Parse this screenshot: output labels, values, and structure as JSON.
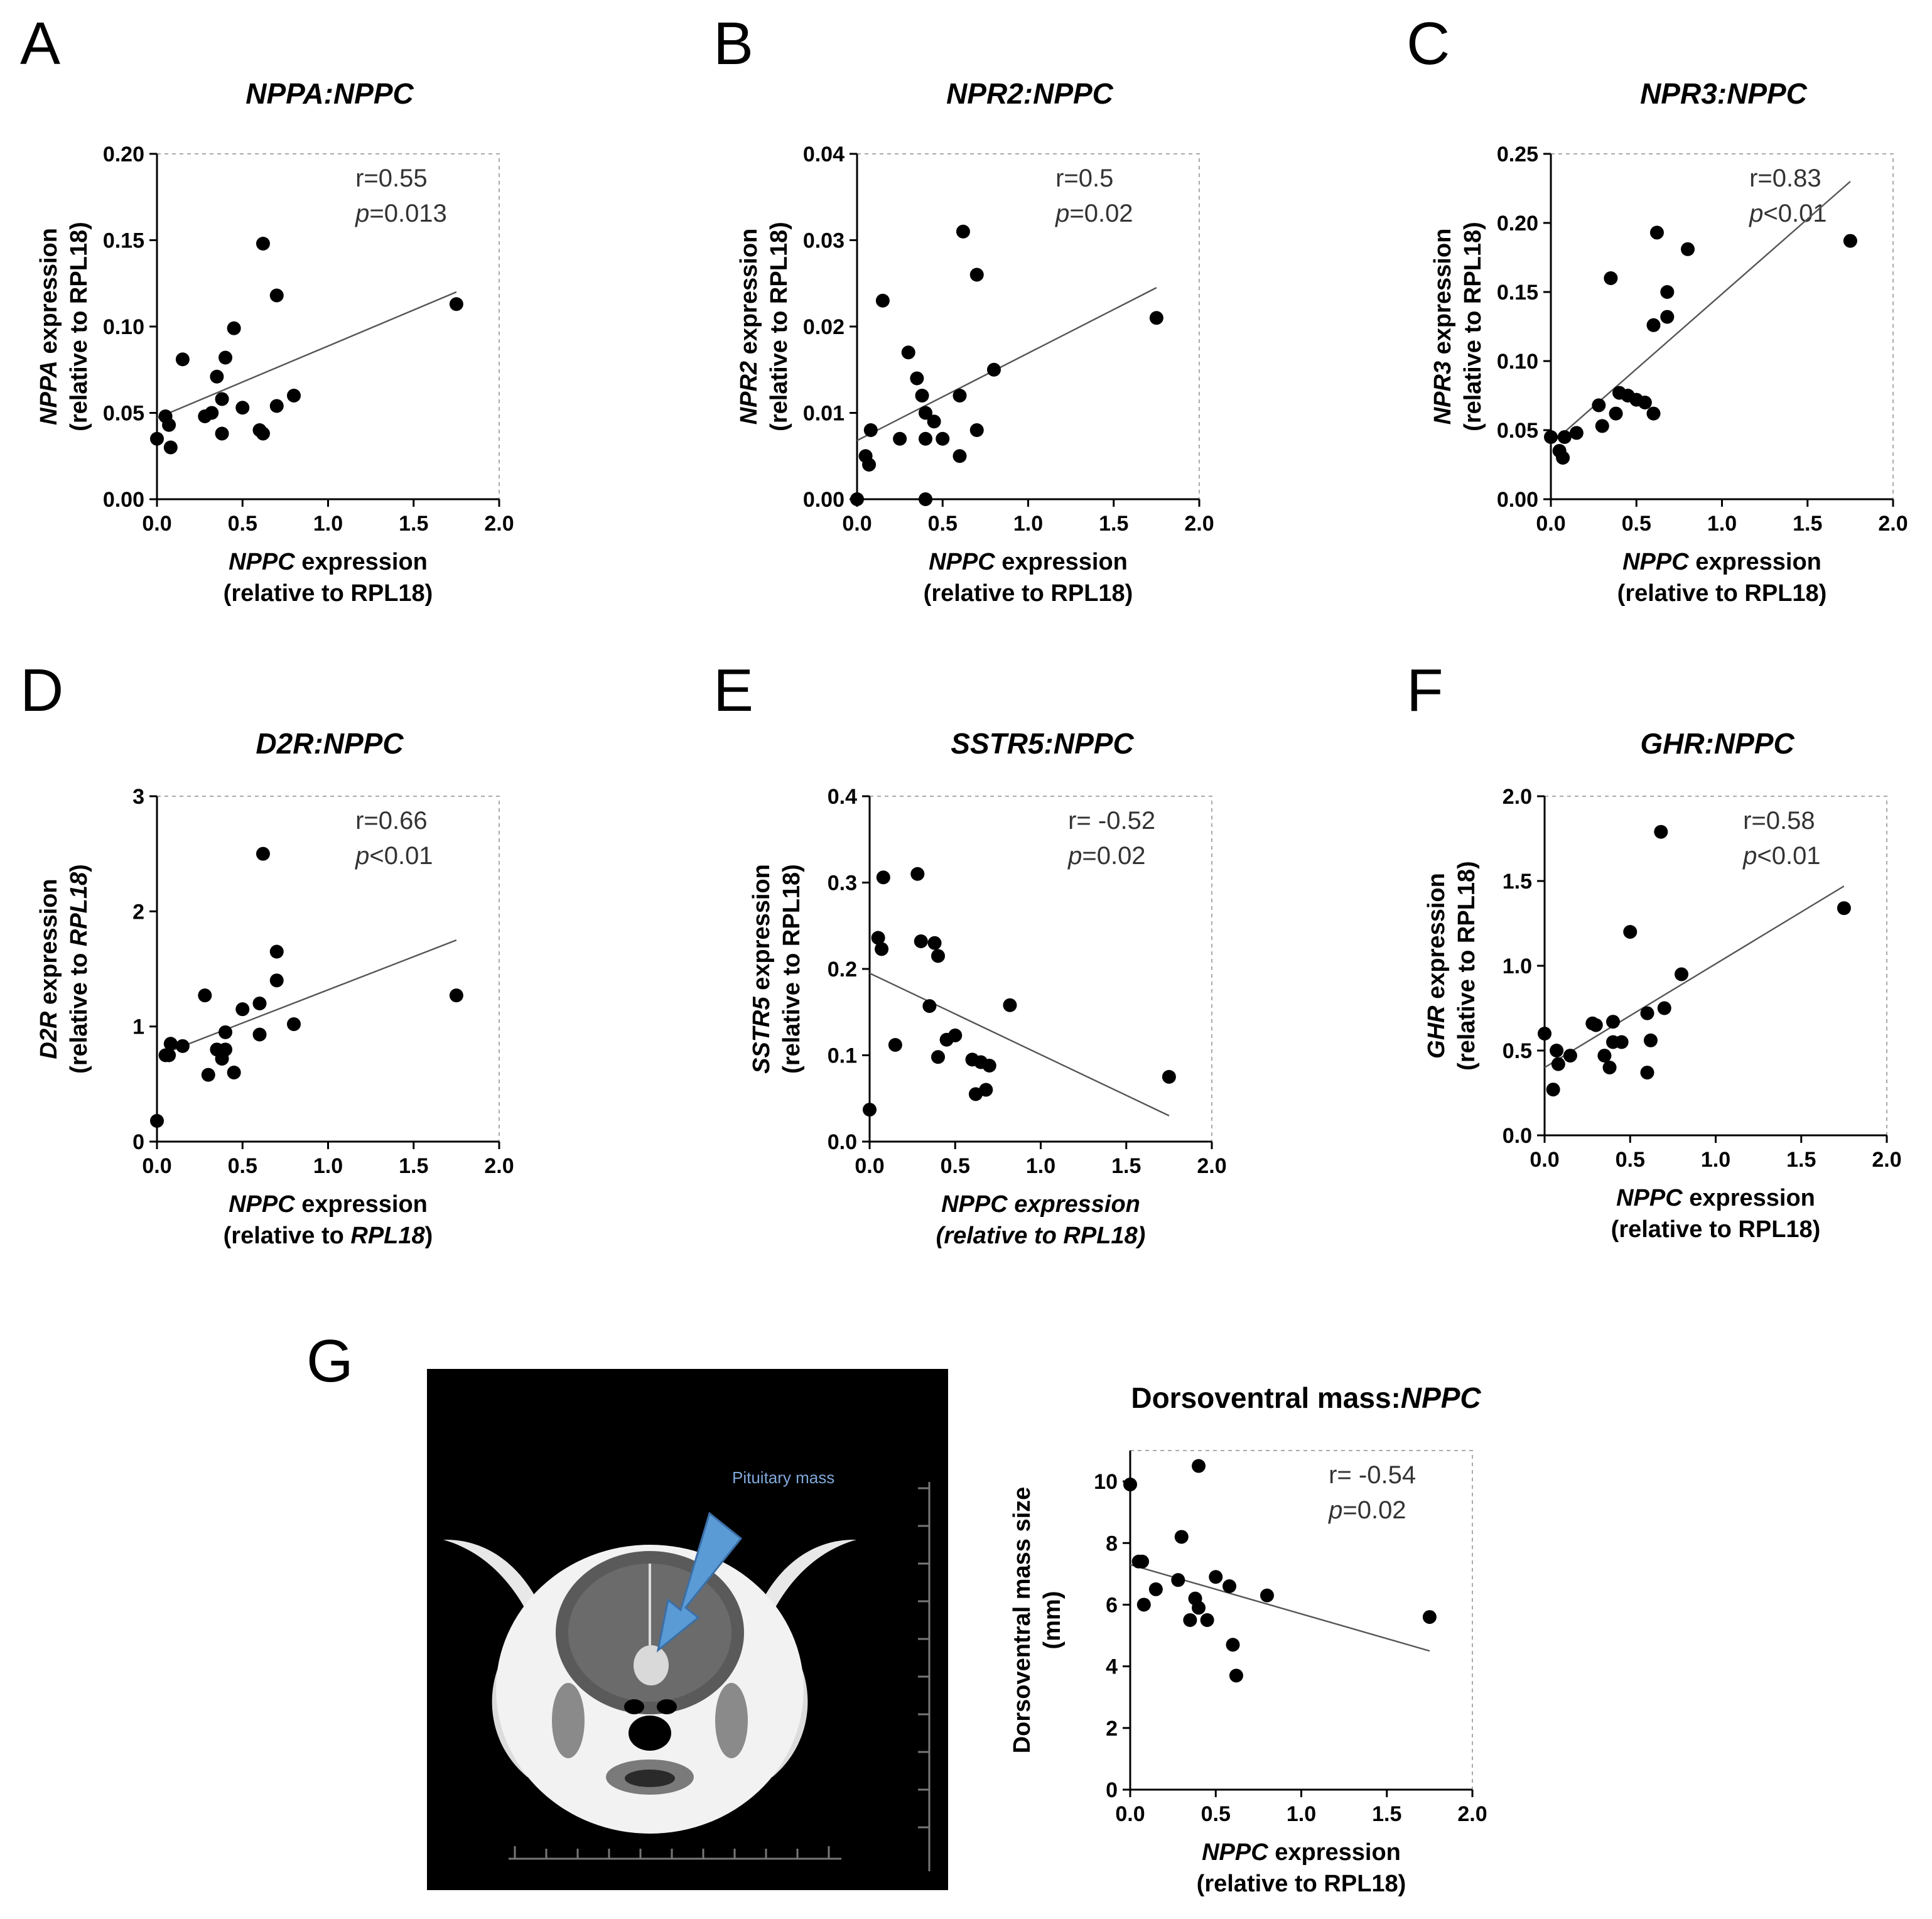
{
  "colors": {
    "points": "#000000",
    "fit_line": "#555555",
    "ct_background": "#000000",
    "arrow": "#5b9bd5"
  },
  "panel_labels": [
    "A",
    "B",
    "C",
    "D",
    "E",
    "F",
    "G"
  ],
  "ct_image": {
    "annotation": "Pituitary mass",
    "icon": "ct-scan-skull-image"
  },
  "chart_data": [
    {
      "id": "A",
      "type": "scatter",
      "title": "NPPA:NPPC",
      "xlabel_line1_italic": "NPPC",
      "xlabel_line1_rest": " expression",
      "xlabel_line2_pre": "(relative to ",
      "xlabel_line2_italic": "",
      "xlabel_line2_post": "RPL18)",
      "ylabel_line1_italic": "NPPA",
      "ylabel_line1_rest": " expression",
      "ylabel_line2_pre": "(relative to ",
      "ylabel_line2_italic": "",
      "ylabel_line2_post": "RPL18)",
      "xlim": [
        0,
        2
      ],
      "ylim": [
        0,
        0.2
      ],
      "xticks": [
        0,
        0.5,
        1,
        1.5,
        2
      ],
      "xtick_labels": [
        "0.0",
        "0.5",
        "1.0",
        "1.5",
        "2.0"
      ],
      "yticks": [
        0,
        0.05,
        0.1,
        0.15,
        0.2
      ],
      "ytick_labels": [
        "0.00",
        "0.05",
        "0.10",
        "0.15",
        "0.20"
      ],
      "stat_r": "r=0.55",
      "stat_p_letter": "p",
      "stat_p_rest": "=0.013",
      "fit": {
        "x": [
          0,
          1.75
        ],
        "y": [
          0.047,
          0.12
        ]
      },
      "points": [
        [
          0.0,
          0.035
        ],
        [
          0.05,
          0.048
        ],
        [
          0.07,
          0.043
        ],
        [
          0.08,
          0.03
        ],
        [
          0.15,
          0.081
        ],
        [
          0.28,
          0.048
        ],
        [
          0.32,
          0.05
        ],
        [
          0.35,
          0.071
        ],
        [
          0.38,
          0.038
        ],
        [
          0.38,
          0.058
        ],
        [
          0.4,
          0.082
        ],
        [
          0.45,
          0.099
        ],
        [
          0.5,
          0.053
        ],
        [
          0.6,
          0.04
        ],
        [
          0.62,
          0.038
        ],
        [
          0.62,
          0.148
        ],
        [
          0.7,
          0.118
        ],
        [
          0.7,
          0.054
        ],
        [
          0.8,
          0.06
        ],
        [
          1.75,
          0.113
        ]
      ]
    },
    {
      "id": "B",
      "type": "scatter",
      "title": "NPR2:NPPC",
      "xlabel_line1_italic": "NPPC",
      "xlabel_line1_rest": " expression",
      "xlabel_line2_pre": "(relative to ",
      "xlabel_line2_italic": "",
      "xlabel_line2_post": "RPL18)",
      "ylabel_line1_italic": "NPR2",
      "ylabel_line1_rest": " expression",
      "ylabel_line2_pre": "(relative to ",
      "ylabel_line2_italic": "",
      "ylabel_line2_post": "RPL18)",
      "xlim": [
        0,
        2
      ],
      "ylim": [
        0,
        0.04
      ],
      "xticks": [
        0,
        0.5,
        1,
        1.5,
        2
      ],
      "xtick_labels": [
        "0.0",
        "0.5",
        "1.0",
        "1.5",
        "2.0"
      ],
      "yticks": [
        0,
        0.01,
        0.02,
        0.03,
        0.04
      ],
      "ytick_labels": [
        "0.00",
        "0.01",
        "0.02",
        "0.03",
        "0.04"
      ],
      "stat_r": "r=0.5",
      "stat_p_letter": "p",
      "stat_p_rest": "=0.02",
      "fit": {
        "x": [
          0,
          1.75
        ],
        "y": [
          0.0068,
          0.0245
        ]
      },
      "points": [
        [
          0.0,
          0.0
        ],
        [
          0.05,
          0.005
        ],
        [
          0.07,
          0.004
        ],
        [
          0.08,
          0.008
        ],
        [
          0.15,
          0.023
        ],
        [
          0.25,
          0.007
        ],
        [
          0.3,
          0.017
        ],
        [
          0.35,
          0.014
        ],
        [
          0.38,
          0.012
        ],
        [
          0.4,
          0.01
        ],
        [
          0.4,
          0.007
        ],
        [
          0.4,
          0.0
        ],
        [
          0.45,
          0.009
        ],
        [
          0.5,
          0.007
        ],
        [
          0.6,
          0.012
        ],
        [
          0.6,
          0.005
        ],
        [
          0.62,
          0.031
        ],
        [
          0.7,
          0.026
        ],
        [
          0.7,
          0.008
        ],
        [
          0.8,
          0.015
        ],
        [
          1.75,
          0.021
        ]
      ]
    },
    {
      "id": "C",
      "type": "scatter",
      "title": "NPR3:NPPC",
      "xlabel_line1_italic": "NPPC",
      "xlabel_line1_rest": " expression",
      "xlabel_line2_pre": "(relative to ",
      "xlabel_line2_italic": "",
      "xlabel_line2_post": "RPL18)",
      "ylabel_line1_italic": "NPR3",
      "ylabel_line1_rest": " expression",
      "ylabel_line2_pre": "(relative to ",
      "ylabel_line2_italic": "",
      "ylabel_line2_post": "RPL18)",
      "xlim": [
        0,
        2
      ],
      "ylim": [
        0,
        0.25
      ],
      "xticks": [
        0,
        0.5,
        1,
        1.5,
        2
      ],
      "xtick_labels": [
        "0.0",
        "0.5",
        "1.0",
        "1.5",
        "2.0"
      ],
      "yticks": [
        0,
        0.05,
        0.1,
        0.15,
        0.2,
        0.25
      ],
      "ytick_labels": [
        "0.00",
        "0.05",
        "0.10",
        "0.15",
        "0.20",
        "0.25"
      ],
      "stat_r": "r=0.83",
      "stat_p_letter": "p",
      "stat_p_rest": "<0.01",
      "fit": {
        "x": [
          0,
          1.75
        ],
        "y": [
          0.04,
          0.23
        ]
      },
      "points": [
        [
          0.0,
          0.045
        ],
        [
          0.05,
          0.035
        ],
        [
          0.07,
          0.03
        ],
        [
          0.08,
          0.045
        ],
        [
          0.15,
          0.048
        ],
        [
          0.28,
          0.068
        ],
        [
          0.3,
          0.053
        ],
        [
          0.35,
          0.16
        ],
        [
          0.38,
          0.062
        ],
        [
          0.4,
          0.077
        ],
        [
          0.45,
          0.075
        ],
        [
          0.5,
          0.072
        ],
        [
          0.55,
          0.07
        ],
        [
          0.6,
          0.126
        ],
        [
          0.6,
          0.062
        ],
        [
          0.62,
          0.193
        ],
        [
          0.68,
          0.132
        ],
        [
          0.68,
          0.15
        ],
        [
          0.8,
          0.181
        ],
        [
          1.75,
          0.187
        ]
      ]
    },
    {
      "id": "D",
      "type": "scatter",
      "title": "D2R:NPPC",
      "xlabel_line1_italic": "NPPC",
      "xlabel_line1_rest": " expression",
      "xlabel_line2_pre": "(relative to ",
      "xlabel_line2_italic": "RPL18",
      "xlabel_line2_post": ")",
      "ylabel_line1_italic": "D2R",
      "ylabel_line1_rest": " expression",
      "ylabel_line2_pre": "(relative to ",
      "ylabel_line2_italic": "RPL18",
      "ylabel_line2_post": ")",
      "xlim": [
        0,
        2
      ],
      "ylim": [
        0,
        3
      ],
      "xticks": [
        0,
        0.5,
        1,
        1.5,
        2
      ],
      "xtick_labels": [
        "0.0",
        "0.5",
        "1.0",
        "1.5",
        "2.0"
      ],
      "yticks": [
        0,
        1,
        2,
        3
      ],
      "ytick_labels": [
        "0",
        "1",
        "2",
        "3"
      ],
      "stat_r": "r=0.66",
      "stat_p_letter": "p",
      "stat_p_rest": "<0.01",
      "fit": {
        "x": [
          0.1,
          1.75
        ],
        "y": [
          0.8,
          1.75
        ]
      },
      "points": [
        [
          0.0,
          0.18
        ],
        [
          0.05,
          0.75
        ],
        [
          0.07,
          0.75
        ],
        [
          0.08,
          0.85
        ],
        [
          0.15,
          0.83
        ],
        [
          0.28,
          1.27
        ],
        [
          0.3,
          0.58
        ],
        [
          0.35,
          0.8
        ],
        [
          0.38,
          0.72
        ],
        [
          0.4,
          0.95
        ],
        [
          0.4,
          0.8
        ],
        [
          0.45,
          0.6
        ],
        [
          0.5,
          1.15
        ],
        [
          0.6,
          1.2
        ],
        [
          0.6,
          0.93
        ],
        [
          0.62,
          2.5
        ],
        [
          0.7,
          1.65
        ],
        [
          0.7,
          1.4
        ],
        [
          0.8,
          1.02
        ],
        [
          1.75,
          1.27
        ]
      ]
    },
    {
      "id": "E",
      "type": "scatter",
      "title": "SSTR5:NPPC",
      "xlabel_line1_italic": "NPPC expression",
      "xlabel_line1_rest": "",
      "xlabel_line2_pre": "",
      "xlabel_line2_italic": "(relative to RPL18)",
      "xlabel_line2_post": "",
      "ylabel_line1_italic": "SSTR5",
      "ylabel_line1_rest": " expression",
      "ylabel_line2_pre": "(relative to ",
      "ylabel_line2_italic": "",
      "ylabel_line2_post": "RPL18)",
      "xlim": [
        0,
        2
      ],
      "ylim": [
        0,
        0.4
      ],
      "xticks": [
        0,
        0.5,
        1,
        1.5,
        2
      ],
      "xtick_labels": [
        "0.0",
        "0.5",
        "1.0",
        "1.5",
        "2.0"
      ],
      "yticks": [
        0,
        0.1,
        0.2,
        0.3,
        0.4
      ],
      "ytick_labels": [
        "0.0",
        "0.1",
        "0.2",
        "0.3",
        "0.4"
      ],
      "stat_r": "r= -0.52",
      "stat_p_letter": "p",
      "stat_p_rest": "=0.02",
      "fit": {
        "x": [
          0,
          1.75
        ],
        "y": [
          0.195,
          0.03
        ]
      },
      "points": [
        [
          0.0,
          0.037
        ],
        [
          0.05,
          0.236
        ],
        [
          0.07,
          0.223
        ],
        [
          0.08,
          0.306
        ],
        [
          0.15,
          0.112
        ],
        [
          0.28,
          0.31
        ],
        [
          0.3,
          0.232
        ],
        [
          0.35,
          0.157
        ],
        [
          0.38,
          0.23
        ],
        [
          0.4,
          0.215
        ],
        [
          0.4,
          0.098
        ],
        [
          0.45,
          0.118
        ],
        [
          0.5,
          0.123
        ],
        [
          0.6,
          0.095
        ],
        [
          0.62,
          0.055
        ],
        [
          0.65,
          0.092
        ],
        [
          0.68,
          0.06
        ],
        [
          0.7,
          0.088
        ],
        [
          0.82,
          0.158
        ],
        [
          1.75,
          0.075
        ]
      ]
    },
    {
      "id": "F",
      "type": "scatter",
      "title": "GHR:NPPC",
      "xlabel_line1_italic": "NPPC",
      "xlabel_line1_rest": " expression",
      "xlabel_line2_pre": "(relative to ",
      "xlabel_line2_italic": "",
      "xlabel_line2_post": "RPL18)",
      "ylabel_line1_italic": "GHR",
      "ylabel_line1_rest": " expression",
      "ylabel_line2_pre": "(relative to ",
      "ylabel_line2_italic": "",
      "ylabel_line2_post": "RPL18)",
      "xlim": [
        0,
        2
      ],
      "ylim": [
        0,
        2
      ],
      "xticks": [
        0,
        0.5,
        1,
        1.5,
        2
      ],
      "xtick_labels": [
        "0.0",
        "0.5",
        "1.0",
        "1.5",
        "2.0"
      ],
      "yticks": [
        0,
        0.5,
        1,
        1.5,
        2
      ],
      "ytick_labels": [
        "0.0",
        "0.5",
        "1.0",
        "1.5",
        "2.0"
      ],
      "stat_r": "r=0.58",
      "stat_p_letter": "p",
      "stat_p_rest": "<0.01",
      "fit": {
        "x": [
          0,
          1.75
        ],
        "y": [
          0.4,
          1.47
        ]
      },
      "points": [
        [
          0.0,
          0.6
        ],
        [
          0.05,
          0.27
        ],
        [
          0.07,
          0.5
        ],
        [
          0.08,
          0.42
        ],
        [
          0.15,
          0.47
        ],
        [
          0.28,
          0.66
        ],
        [
          0.3,
          0.65
        ],
        [
          0.35,
          0.47
        ],
        [
          0.38,
          0.4
        ],
        [
          0.4,
          0.55
        ],
        [
          0.4,
          0.67
        ],
        [
          0.45,
          0.55
        ],
        [
          0.5,
          1.2
        ],
        [
          0.6,
          0.37
        ],
        [
          0.6,
          0.72
        ],
        [
          0.62,
          0.56
        ],
        [
          0.68,
          1.79
        ],
        [
          0.7,
          0.75
        ],
        [
          0.8,
          0.95
        ],
        [
          1.75,
          1.34
        ]
      ]
    },
    {
      "id": "G",
      "type": "scatter",
      "title": "Dorsoventral mass:NPPC",
      "title_plain": "Dorsoventral mass:",
      "title_italic": "NPPC",
      "xlabel_line1_italic": "NPPC",
      "xlabel_line1_rest": " expression",
      "xlabel_line2_pre": "(relative to ",
      "xlabel_line2_italic": "",
      "xlabel_line2_post": "RPL18)",
      "ylabel_line1_plain": "Dorsoventral mass size",
      "ylabel_line2_plain": "(mm)",
      "xlim": [
        0,
        2
      ],
      "ylim": [
        0,
        11
      ],
      "xticks": [
        0,
        0.5,
        1,
        1.5,
        2
      ],
      "xtick_labels": [
        "0.0",
        "0.5",
        "1.0",
        "1.5",
        "2.0"
      ],
      "yticks": [
        0,
        2,
        4,
        6,
        8,
        10
      ],
      "ytick_labels": [
        "0",
        "2",
        "4",
        "6",
        "8",
        "10"
      ],
      "stat_r": "r= -0.54",
      "stat_p_letter": "p",
      "stat_p_rest": "=0.02",
      "fit": {
        "x": [
          0,
          1.75
        ],
        "y": [
          7.3,
          4.5
        ]
      },
      "points": [
        [
          0.0,
          9.9
        ],
        [
          0.05,
          7.4
        ],
        [
          0.07,
          7.4
        ],
        [
          0.08,
          6.0
        ],
        [
          0.15,
          6.5
        ],
        [
          0.28,
          6.8
        ],
        [
          0.3,
          8.2
        ],
        [
          0.35,
          5.5
        ],
        [
          0.38,
          6.2
        ],
        [
          0.4,
          10.5
        ],
        [
          0.4,
          5.9
        ],
        [
          0.45,
          5.5
        ],
        [
          0.5,
          6.9
        ],
        [
          0.58,
          6.6
        ],
        [
          0.6,
          4.7
        ],
        [
          0.62,
          3.7
        ],
        [
          0.8,
          6.3
        ],
        [
          1.75,
          5.6
        ]
      ]
    }
  ]
}
